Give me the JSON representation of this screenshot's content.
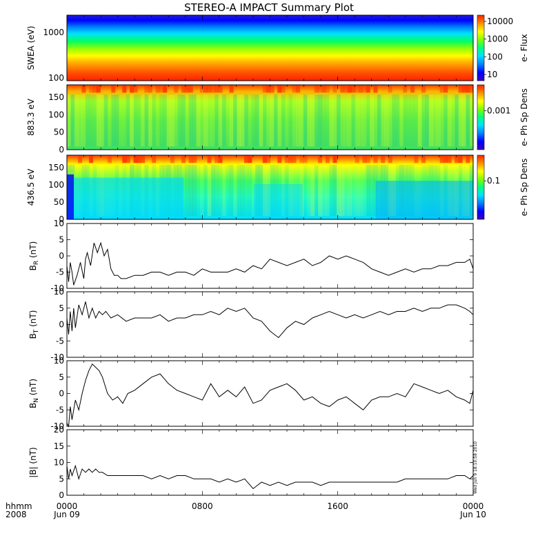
{
  "title": "STEREO-A IMPACT Summary Plot",
  "x_axis": {
    "unit_label": "hhmm",
    "year_label": "2008",
    "ticks": [
      {
        "label": "0000",
        "date": "Jun 09"
      },
      {
        "label": "0800",
        "date": ""
      },
      {
        "label": "1600",
        "date": ""
      },
      {
        "label": "0000",
        "date": "Jun 10"
      }
    ]
  },
  "timestamp": "Wed Jun 9 18:10:58 2010",
  "colors": {
    "line": "#000000",
    "colormap": [
      "#3a00c0",
      "#0000ff",
      "#0080ff",
      "#00e0ff",
      "#00ff80",
      "#80ff00",
      "#ffff00",
      "#ff9000",
      "#ff2000"
    ]
  },
  "chart_data": [
    {
      "type": "heatmap",
      "panel": "swea",
      "ylabel": "SWEA (eV)",
      "yscale": "log",
      "ylim": [
        100,
        2000
      ],
      "yticks": [
        "1000",
        "100"
      ],
      "colorbar": {
        "label": "e- Flux",
        "scale": "log",
        "ticks": [
          "10000",
          "1000",
          "100",
          "10"
        ]
      },
      "x": [
        0,
        24
      ],
      "description_values": {
        "energy_eV": [
          100,
          200,
          400,
          700,
          1000,
          1500,
          2000
        ],
        "flux_level": [
          0.95,
          0.85,
          0.65,
          0.5,
          0.35,
          0.2,
          0.05
        ]
      }
    },
    {
      "type": "heatmap",
      "panel": "pad883",
      "ylabel": "883.3 eV",
      "ylim": [
        0,
        180
      ],
      "yticks": [
        "150",
        "100",
        "50",
        "0"
      ],
      "colorbar": {
        "label": "e- Ph Sp Dens",
        "scale": "log",
        "ticks": [
          "0.001"
        ]
      }
    },
    {
      "type": "heatmap",
      "panel": "pad436",
      "ylabel": "436.5 eV",
      "ylim": [
        0,
        180
      ],
      "yticks": [
        "150",
        "100",
        "50",
        "0"
      ],
      "colorbar": {
        "label": "e- Ph Sp Dens",
        "scale": "log",
        "ticks": [
          "0.1"
        ]
      }
    },
    {
      "type": "line",
      "panel": "br",
      "ylabel": "BR (nT)",
      "ylabel_main": "B",
      "ylabel_sub": "R",
      "ylabel_unit": " (nT)",
      "ylim": [
        -10,
        10
      ],
      "yticks": [
        "10",
        "5",
        "0",
        "-5",
        "-10"
      ],
      "x": [
        0,
        0.1,
        0.2,
        0.3,
        0.4,
        0.6,
        0.8,
        1.0,
        1.1,
        1.2,
        1.4,
        1.6,
        1.8,
        2.0,
        2.2,
        2.4,
        2.6,
        2.8,
        3.0,
        3.2,
        3.5,
        4,
        4.5,
        5,
        5.5,
        6,
        6.5,
        7,
        7.5,
        8,
        8.5,
        9,
        9.5,
        10,
        10.5,
        11,
        11.5,
        12,
        12.5,
        13,
        13.5,
        14,
        14.5,
        15,
        15.5,
        16,
        16.5,
        17,
        17.5,
        18,
        18.5,
        19,
        19.5,
        20,
        20.5,
        21,
        21.5,
        22,
        22.5,
        23,
        23.5,
        23.8,
        24
      ],
      "values": [
        -3,
        -8,
        -2,
        -5,
        -9,
        -6,
        -2,
        -7,
        -1,
        1,
        -3,
        4,
        1,
        4,
        0,
        2,
        -4,
        -6,
        -6,
        -7,
        -7,
        -6,
        -6,
        -5,
        -5,
        -6,
        -5,
        -5,
        -6,
        -4,
        -5,
        -5,
        -5,
        -4,
        -5,
        -3,
        -4,
        -1,
        -2,
        -3,
        -2,
        -1,
        -3,
        -2,
        0,
        -1,
        0,
        -1,
        -2,
        -4,
        -5,
        -6,
        -5,
        -4,
        -5,
        -4,
        -4,
        -3,
        -3,
        -2,
        -2,
        -1,
        -4
      ]
    },
    {
      "type": "line",
      "panel": "bt",
      "ylabel": "BT (nT)",
      "ylabel_main": "B",
      "ylabel_sub": "T",
      "ylabel_unit": " (nT)",
      "ylim": [
        -10,
        10
      ],
      "yticks": [
        "10",
        "5",
        "0",
        "-5",
        "-10"
      ],
      "x": [
        0,
        0.1,
        0.2,
        0.3,
        0.4,
        0.5,
        0.7,
        0.9,
        1.1,
        1.3,
        1.5,
        1.7,
        1.9,
        2.1,
        2.3,
        2.6,
        3,
        3.5,
        4,
        4.5,
        5,
        5.5,
        6,
        6.5,
        7,
        7.5,
        8,
        8.5,
        9,
        9.5,
        10,
        10.5,
        11,
        11.5,
        12,
        12.5,
        13,
        13.5,
        14,
        14.5,
        15,
        15.5,
        16,
        16.5,
        17,
        17.5,
        18,
        18.5,
        19,
        19.5,
        20,
        20.5,
        21,
        21.5,
        22,
        22.5,
        23,
        23.5,
        23.8,
        24
      ],
      "values": [
        2,
        -3,
        4,
        -2,
        5,
        -1,
        6,
        3,
        7,
        2,
        5,
        2,
        4,
        3,
        4,
        2,
        3,
        1,
        2,
        2,
        2,
        3,
        1,
        2,
        2,
        3,
        3,
        4,
        3,
        5,
        4,
        5,
        2,
        1,
        -2,
        -4,
        -1,
        1,
        0,
        2,
        3,
        4,
        3,
        2,
        3,
        2,
        3,
        4,
        3,
        4,
        4,
        5,
        4,
        5,
        5,
        6,
        6,
        5,
        4,
        3
      ]
    },
    {
      "type": "line",
      "panel": "bn",
      "ylabel": "BN (nT)",
      "ylabel_main": "B",
      "ylabel_sub": "N",
      "ylabel_unit": " (nT)",
      "ylim": [
        -10,
        10
      ],
      "yticks": [
        "10",
        "5",
        "0",
        "-5",
        "-10"
      ],
      "x": [
        0,
        0.1,
        0.2,
        0.3,
        0.5,
        0.7,
        0.9,
        1.1,
        1.3,
        1.5,
        1.7,
        1.9,
        2.1,
        2.4,
        2.7,
        3,
        3.3,
        3.6,
        4,
        4.5,
        5,
        5.5,
        6,
        6.5,
        7,
        7.5,
        8,
        8.5,
        9,
        9.5,
        10,
        10.5,
        11,
        11.5,
        12,
        12.5,
        13,
        13.5,
        14,
        14.5,
        15,
        15.5,
        16,
        16.5,
        17,
        17.5,
        18,
        18.5,
        19,
        19.5,
        20,
        20.5,
        21,
        21.5,
        22,
        22.5,
        23,
        23.5,
        23.8,
        24
      ],
      "values": [
        -9,
        -10,
        -4,
        -8,
        -2,
        -5,
        0,
        4,
        7,
        9,
        8,
        7,
        5,
        0,
        -2,
        -1,
        -3,
        0,
        1,
        3,
        5,
        6,
        3,
        1,
        0,
        -1,
        -2,
        3,
        -1,
        1,
        -1,
        2,
        -3,
        -2,
        1,
        2,
        3,
        1,
        -2,
        -1,
        -3,
        -4,
        -2,
        -1,
        -3,
        -5,
        -2,
        -1,
        -1,
        0,
        -1,
        3,
        2,
        1,
        0,
        1,
        -1,
        -2,
        -3,
        1
      ]
    },
    {
      "type": "line",
      "panel": "bmag",
      "ylabel": "|B| (nT)",
      "ylabel_main": "|B|",
      "ylabel_sub": "",
      "ylabel_unit": " (nT)",
      "ylim": [
        0,
        20
      ],
      "yticks": [
        "20",
        "15",
        "10",
        "5",
        "0"
      ],
      "x": [
        0,
        0.1,
        0.2,
        0.3,
        0.5,
        0.7,
        0.9,
        1.1,
        1.3,
        1.5,
        1.7,
        1.9,
        2.1,
        2.4,
        2.7,
        3,
        3.5,
        4,
        4.5,
        5,
        5.5,
        6,
        6.5,
        7,
        7.5,
        8,
        8.5,
        9,
        9.5,
        10,
        10.5,
        11,
        11.5,
        12,
        12.5,
        13,
        13.5,
        14,
        14.5,
        15,
        15.5,
        16,
        16.5,
        17,
        17.5,
        18,
        18.5,
        19,
        19.5,
        20,
        20.5,
        21,
        21.5,
        22,
        22.5,
        23,
        23.5,
        23.8,
        24
      ],
      "values": [
        9,
        5,
        8,
        6,
        9,
        5,
        8,
        7,
        8,
        7,
        8,
        7,
        7,
        6,
        6,
        6,
        6,
        6,
        6,
        5,
        6,
        5,
        6,
        6,
        5,
        5,
        5,
        4,
        5,
        4,
        5,
        2,
        4,
        3,
        4,
        3,
        4,
        4,
        4,
        3,
        4,
        4,
        4,
        4,
        4,
        4,
        4,
        4,
        4,
        5,
        5,
        5,
        5,
        5,
        5,
        6,
        6,
        5,
        6
      ]
    }
  ]
}
